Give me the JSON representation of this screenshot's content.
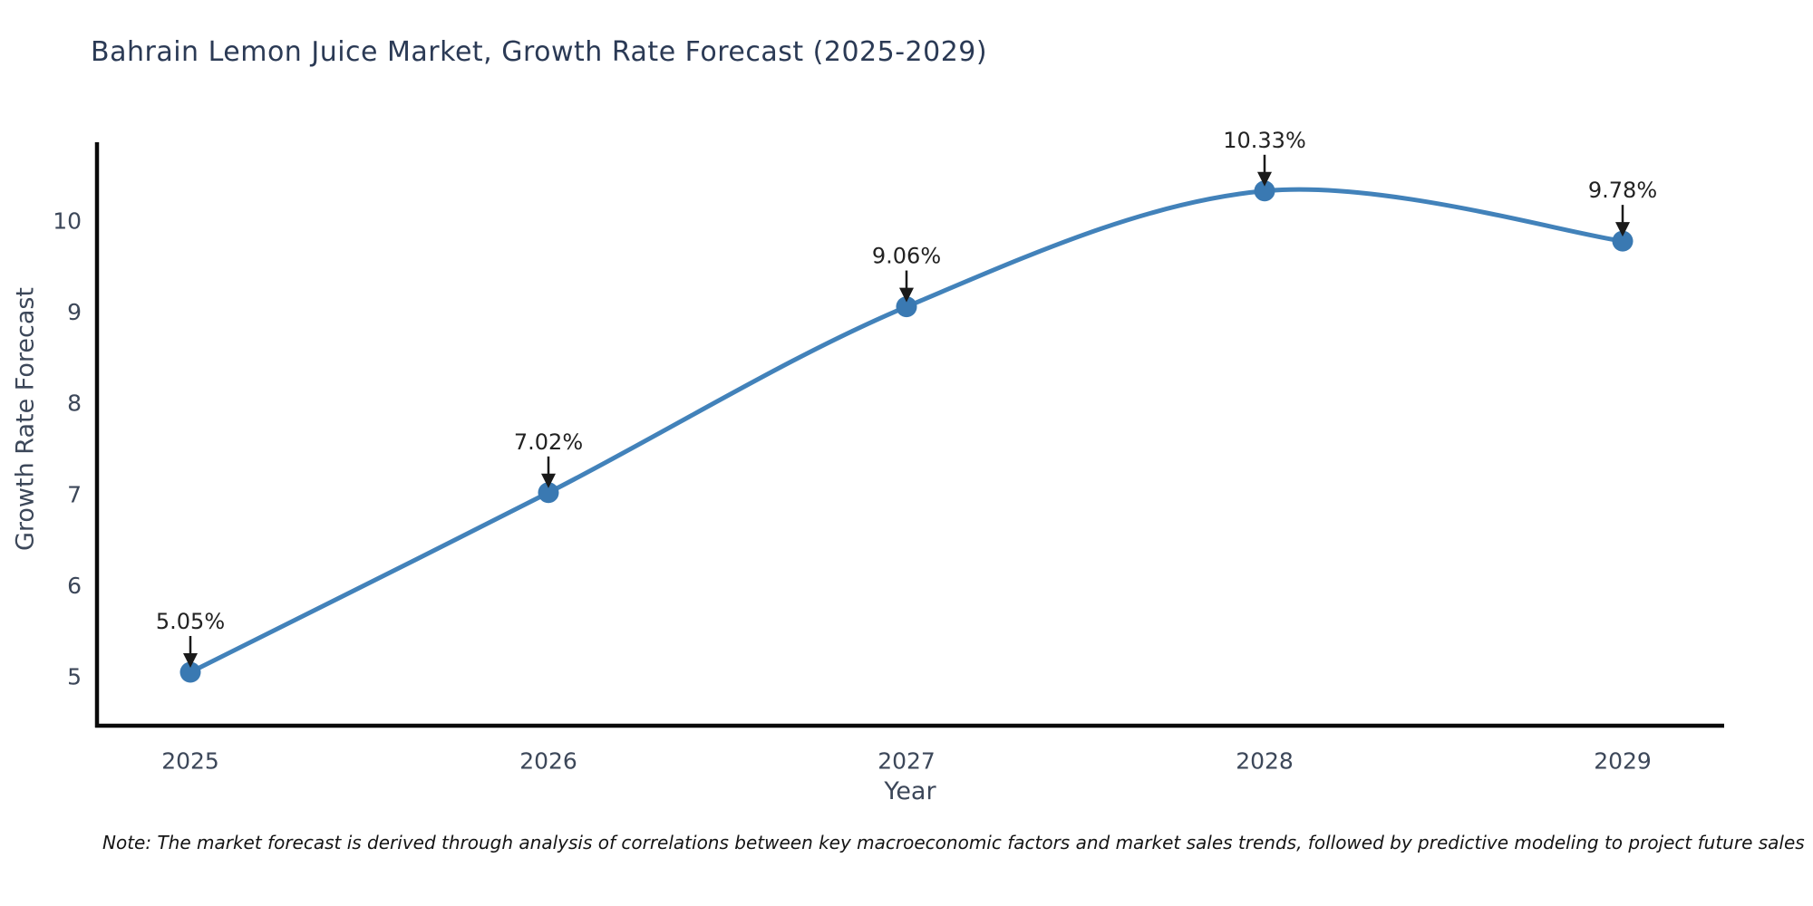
{
  "chart": {
    "title": "Bahrain Lemon Juice Market, Growth Rate Forecast (2025-2029)",
    "note": "Note: The market forecast is derived through analysis of correlations between key macroeconomic factors and market sales trends, followed by predictive modeling to project future sales"
  },
  "chart_data": {
    "type": "line",
    "title": "Bahrain Lemon Juice Market, Growth Rate Forecast (2025-2029)",
    "xlabel": "Year",
    "ylabel": "Growth Rate Forecast",
    "x": [
      2025,
      2026,
      2027,
      2028,
      2029
    ],
    "y": [
      5.05,
      7.02,
      9.06,
      10.33,
      9.78
    ],
    "point_labels": [
      "5.05%",
      "7.02%",
      "9.06%",
      "10.33%",
      "9.78%"
    ],
    "xticks": [
      "2025",
      "2026",
      "2027",
      "2028",
      "2029"
    ],
    "yticks": [
      5,
      6,
      7,
      8,
      9,
      10
    ],
    "ylim": [
      4.44,
      10.86
    ],
    "grid": false,
    "legend": false,
    "smooth": true,
    "line_color": "#4282ba",
    "marker_color": "#3a79b2",
    "axis_color": "#0a0a0a",
    "tick_label_color": "#3c4759",
    "annotation_color": "#1a1a1a"
  }
}
